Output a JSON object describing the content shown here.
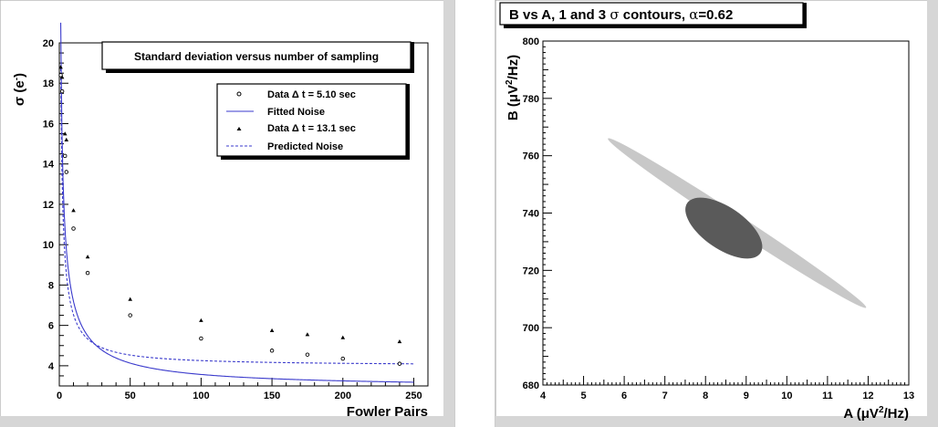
{
  "chart_data": [
    {
      "type": "scatter",
      "title": "Standard deviation versus number of sampling",
      "xlabel": "Fowler Pairs",
      "ylabel": "σ (e⁻)",
      "xlim": [
        0,
        260
      ],
      "ylim": [
        3,
        20
      ],
      "x_ticks": [
        "0",
        "50",
        "100",
        "150",
        "200",
        "250"
      ],
      "y_ticks": [
        "4",
        "6",
        "8",
        "10",
        "12",
        "14",
        "16",
        "18",
        "20"
      ],
      "legend_position": "top-right",
      "series": [
        {
          "name": "Data Δ t = 5.10 sec",
          "marker": "open-circle",
          "points": [
            [
              1,
              18.4
            ],
            [
              2,
              17.6
            ],
            [
              4,
              14.4
            ],
            [
              5,
              13.6
            ],
            [
              10,
              10.8
            ],
            [
              20,
              8.6
            ],
            [
              50,
              6.5
            ],
            [
              100,
              5.35
            ],
            [
              150,
              4.75
            ],
            [
              175,
              4.55
            ],
            [
              200,
              4.35
            ],
            [
              240,
              4.1
            ]
          ]
        },
        {
          "name": "Fitted Noise",
          "line": "solid",
          "color": "#3a3acc",
          "model": {
            "k": 20.8,
            "c": 2.9,
            "p": 0.5
          },
          "x_range": [
            1,
            250
          ]
        },
        {
          "name": "Data Δ t = 13.1 sec",
          "marker": "triangle",
          "points": [
            [
              1,
              18.8
            ],
            [
              2,
              18.3
            ],
            [
              4,
              15.5
            ],
            [
              5,
              15.2
            ],
            [
              10,
              11.7
            ],
            [
              20,
              9.4
            ],
            [
              50,
              7.3
            ],
            [
              100,
              6.25
            ],
            [
              150,
              5.75
            ],
            [
              175,
              5.55
            ],
            [
              200,
              5.4
            ],
            [
              240,
              5.2
            ]
          ]
        },
        {
          "name": "Predicted Noise",
          "line": "dashed",
          "color": "#3a3acc",
          "model": {
            "k": 18.3,
            "c": 4.0,
            "p": 0.55
          },
          "x_range": [
            1,
            250
          ]
        }
      ]
    },
    {
      "type": "contour",
      "title": "B vs A, 1 and 3 σ contours, α=0.62",
      "title_parts": {
        "prefix": "B vs A, 1 and 3 ",
        "sigma": "σ",
        "mid": " contours, ",
        "alpha": "α",
        "suffix": "=0.62"
      },
      "xlabel": "A (μV²/Hz)",
      "ylabel": "B (μV²/Hz)",
      "xlim": [
        4,
        13
      ],
      "ylim": [
        680,
        800
      ],
      "x_ticks": [
        "4",
        "5",
        "6",
        "7",
        "8",
        "9",
        "10",
        "11",
        "12",
        "13"
      ],
      "y_ticks": [
        "680",
        "700",
        "720",
        "740",
        "760",
        "780",
        "800"
      ],
      "contours": [
        {
          "level": "3 σ",
          "color": "#c8c8c8",
          "center": [
            8.8,
            736.5
          ],
          "semi_major_points": [
            [
              11.95,
              707
            ],
            [
              5.6,
              766
            ]
          ],
          "semi_minor_width_pts": [
            [
              7.0,
              750
            ],
            [
              10.6,
              723
            ]
          ]
        },
        {
          "level": "1 σ",
          "color": "#5a5a5a",
          "center": [
            8.5,
            735
          ],
          "semi_major_points": [
            [
              9.35,
              726
            ],
            [
              7.55,
              743.5
            ]
          ],
          "semi_minor_width_pts": [
            [
              8.0,
              731
            ],
            [
              9.0,
              739
            ]
          ]
        }
      ]
    }
  ]
}
